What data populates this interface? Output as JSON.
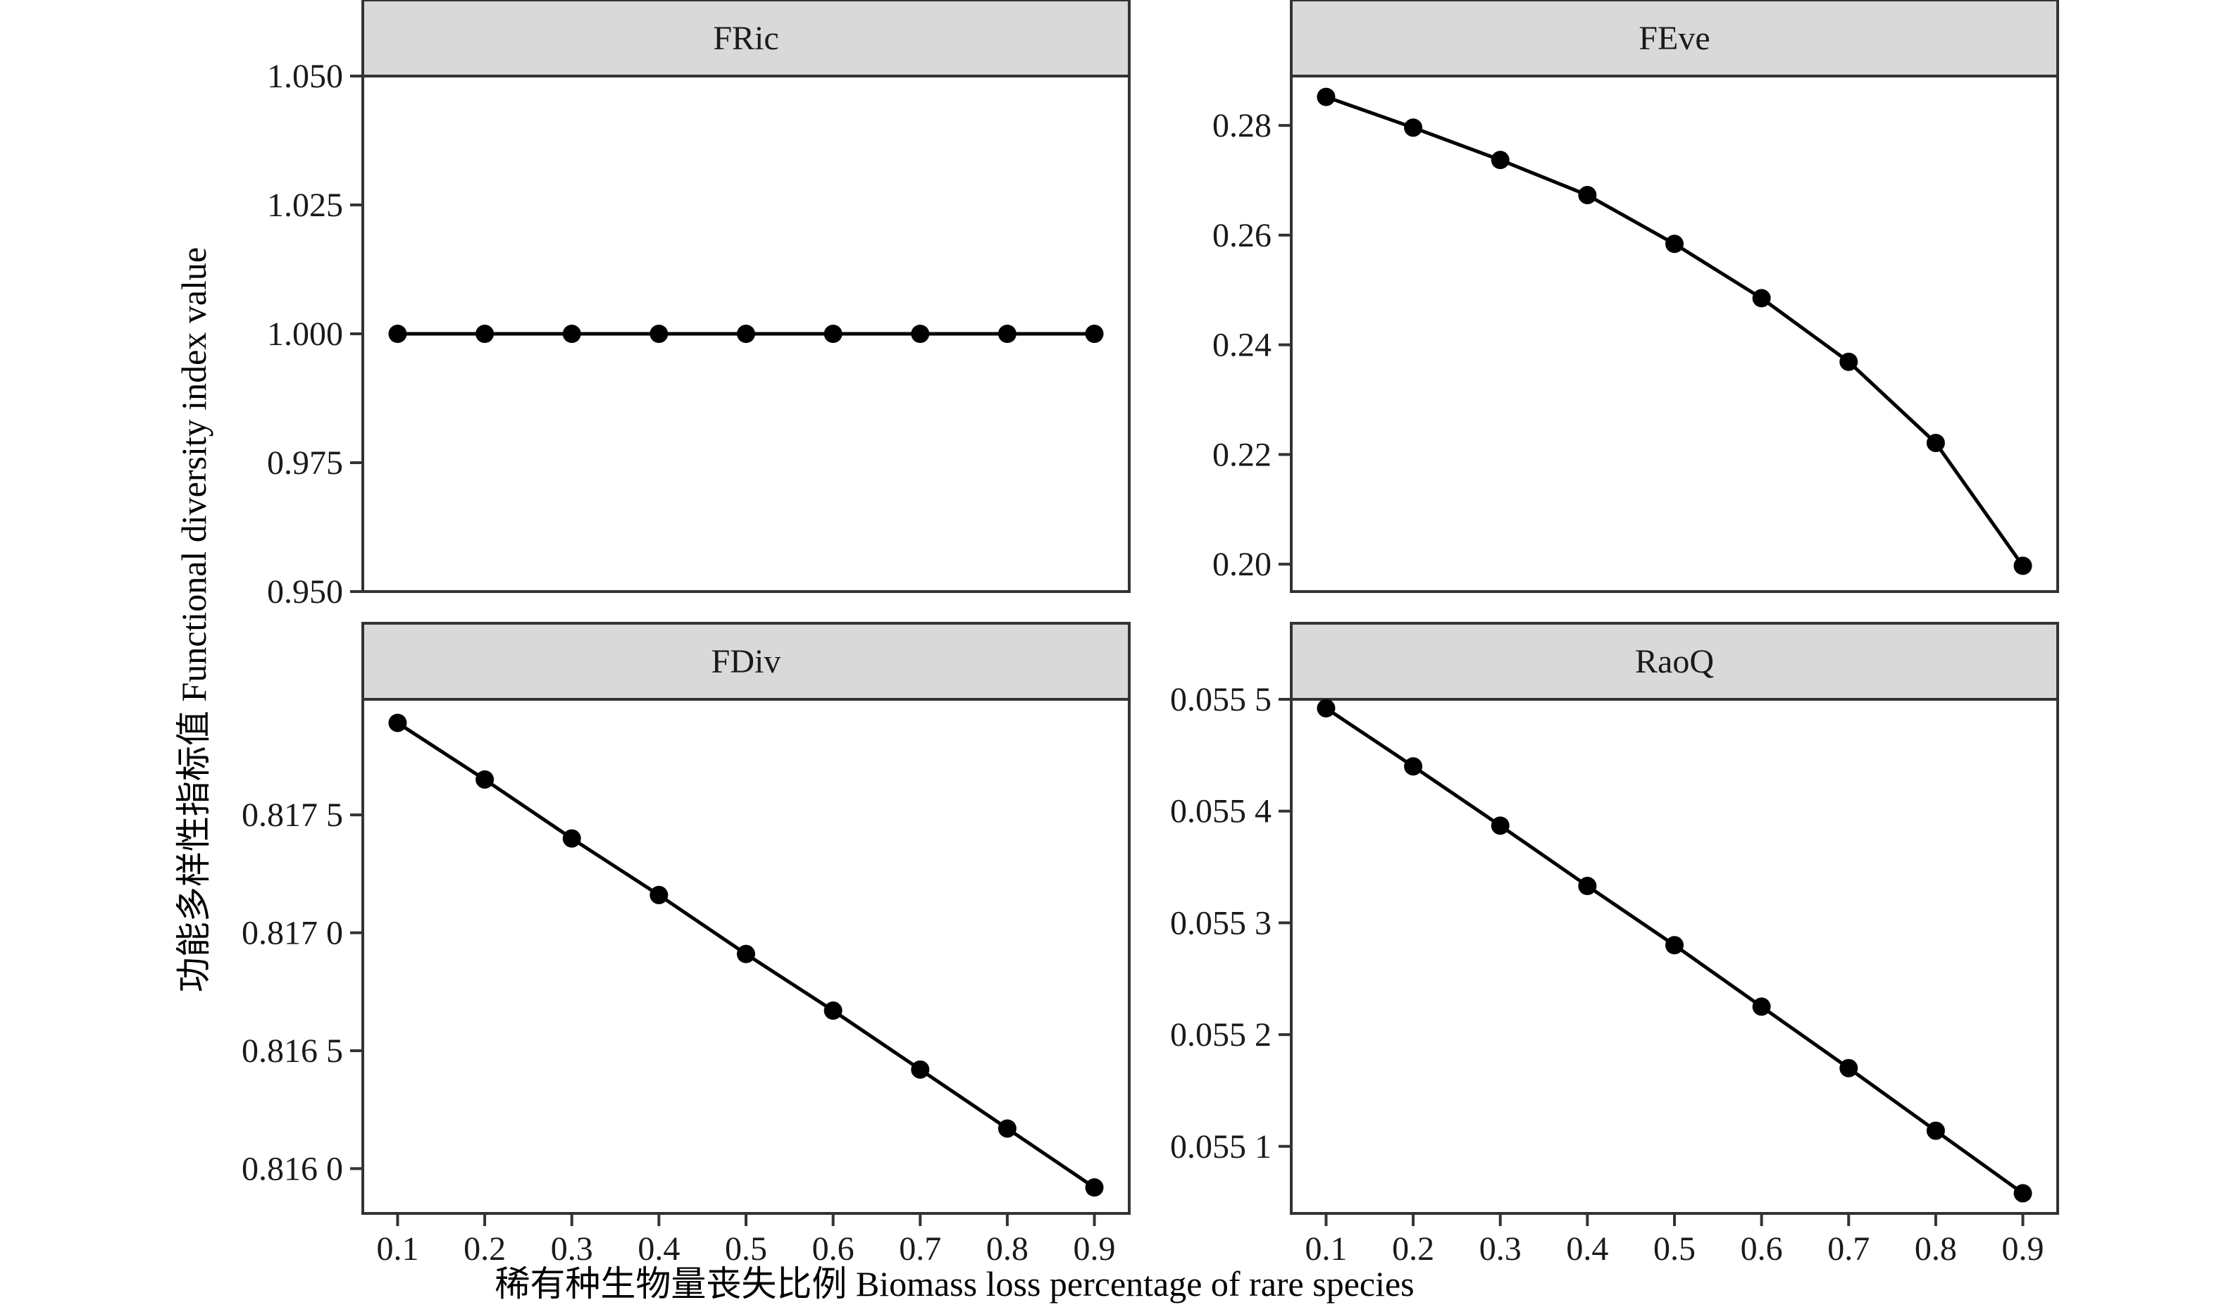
{
  "chart_data": {
    "type": "line",
    "layout": "facet-2x2",
    "xlabel": "稀有种生物量丧失比例 Biomass loss percentage of rare species",
    "ylabel": "功能多样性指标值 Functional diversity index value",
    "x": [
      0.1,
      0.2,
      0.3,
      0.4,
      0.5,
      0.6,
      0.7,
      0.8,
      0.9
    ],
    "x_tick_labels": [
      "0.1",
      "0.2",
      "0.3",
      "0.4",
      "0.5",
      "0.6",
      "0.7",
      "0.8",
      "0.9"
    ],
    "xlim": [
      0.06,
      0.94
    ],
    "grid": false,
    "legend": "none",
    "colors": {
      "series": "#000000",
      "strip": "#d9d9d9",
      "border": "#333333"
    },
    "panels": [
      {
        "title": "FRic",
        "values": [
          1.0,
          1.0,
          1.0,
          1.0,
          1.0,
          1.0,
          1.0,
          1.0,
          1.0
        ],
        "ylim": [
          0.95,
          1.05
        ],
        "y_ticks": [
          0.95,
          0.975,
          1.0,
          1.025,
          1.05
        ],
        "y_tick_labels": [
          "0.950",
          "0.975",
          "1.000",
          "1.025",
          "1.050"
        ],
        "show_x_axis": false
      },
      {
        "title": "FEve",
        "values": [
          0.2852,
          0.2796,
          0.2737,
          0.2673,
          0.2584,
          0.2485,
          0.2369,
          0.2221,
          0.1997
        ],
        "ylim": [
          0.195,
          0.289
        ],
        "y_ticks": [
          0.2,
          0.22,
          0.24,
          0.26,
          0.28
        ],
        "y_tick_labels": [
          "0.20",
          "0.22",
          "0.24",
          "0.26",
          "0.28"
        ],
        "show_x_axis": false
      },
      {
        "title": "FDiv",
        "values": [
          0.81789,
          0.81765,
          0.8174,
          0.81716,
          0.81691,
          0.81667,
          0.81642,
          0.81617,
          0.81592
        ],
        "ylim": [
          0.81581,
          0.81799
        ],
        "y_ticks": [
          0.816,
          0.8165,
          0.817,
          0.8175
        ],
        "y_tick_labels": [
          "0.816 0",
          "0.816 5",
          "0.817 0",
          "0.817 5"
        ],
        "show_x_axis": true
      },
      {
        "title": "RaoQ",
        "values": [
          0.055492,
          0.05544,
          0.055387,
          0.055333,
          0.05528,
          0.055225,
          0.05517,
          0.055114,
          0.055058
        ],
        "ylim": [
          0.05504,
          0.0555
        ],
        "y_ticks": [
          0.0551,
          0.0552,
          0.0553,
          0.0554,
          0.0555
        ],
        "y_tick_labels": [
          "0.055 1",
          "0.055 2",
          "0.055 3",
          "0.055 4",
          "0.055 5"
        ],
        "show_x_axis": true
      }
    ]
  }
}
